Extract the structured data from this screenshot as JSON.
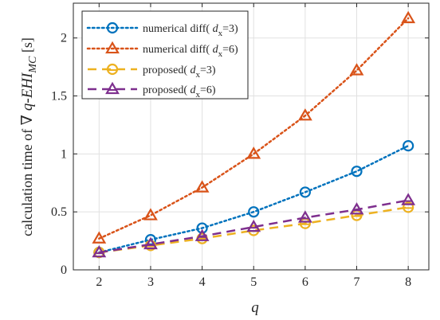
{
  "chart_data": {
    "type": "line",
    "xlabel": "q",
    "ylabel": {
      "prefix": "calculation time of ",
      "nabla": "∇",
      "quantity": "q-EHI",
      "subscript": "MC",
      "unit": " [s]"
    },
    "x": [
      2,
      3,
      4,
      5,
      6,
      7,
      8
    ],
    "xlim": [
      1.5,
      8.4
    ],
    "ylim": [
      0,
      2.3
    ],
    "xticks": [
      "2",
      "3",
      "4",
      "5",
      "6",
      "7",
      "8"
    ],
    "yticks": [
      "0",
      "0.5",
      "1",
      "1.5",
      "2"
    ],
    "ytick_values": [
      0,
      0.5,
      1,
      1.5,
      2
    ],
    "grid": true,
    "legend_position": "top-left",
    "series": [
      {
        "label_main": "numerical diff( ",
        "label_var": "d",
        "label_sub": "x",
        "label_eq": "=3)",
        "values": [
          0.15,
          0.26,
          0.36,
          0.5,
          0.67,
          0.85,
          1.07
        ],
        "color": "#0072BD",
        "marker": "circle",
        "line": "dotted"
      },
      {
        "label_main": "numerical diff( ",
        "label_var": "d",
        "label_sub": "x",
        "label_eq": "=6)",
        "values": [
          0.27,
          0.47,
          0.71,
          1.0,
          1.33,
          1.72,
          2.17
        ],
        "color": "#D95319",
        "marker": "triangle",
        "line": "dotted"
      },
      {
        "label_main": "proposed( ",
        "label_var": "d",
        "label_sub": "x",
        "label_eq": "=3)",
        "values": [
          0.15,
          0.21,
          0.27,
          0.34,
          0.4,
          0.47,
          0.54
        ],
        "color": "#EDB120",
        "marker": "circle-bar",
        "line": "dashed"
      },
      {
        "label_main": "proposed( ",
        "label_var": "d",
        "label_sub": "x",
        "label_eq": "=6)",
        "values": [
          0.15,
          0.22,
          0.29,
          0.37,
          0.45,
          0.52,
          0.6
        ],
        "color": "#7E2F8E",
        "marker": "triangle-bar",
        "line": "dashed"
      }
    ]
  }
}
